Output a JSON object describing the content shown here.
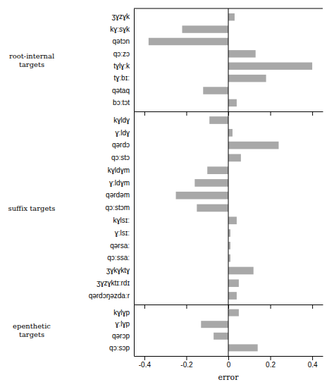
{
  "chart_data": [
    {
      "type": "bar",
      "orientation": "horizontal",
      "ylabel": "root-internal\ntargets",
      "categories": [
        "ʒɣzɣk",
        "kɣːsɣk",
        "qətɔn",
        "qɔːzɔ",
        "tɣlɣːk",
        "tɣːbɪː",
        "qətaq",
        "bɔːtɔt"
      ],
      "values": [
        0.03,
        -0.22,
        -0.38,
        0.13,
        0.4,
        0.18,
        -0.12,
        0.04
      ],
      "color": "#a8a8a8",
      "xlim": [
        -0.45,
        0.45
      ],
      "xticks": [
        -0.4,
        -0.2,
        0,
        0.2,
        0.4
      ],
      "tick_labels": "y",
      "grid": false
    },
    {
      "type": "bar",
      "orientation": "horizontal",
      "ylabel": "suffix targets",
      "categories": [
        "kɣldɣ",
        "ɣːldɣ",
        "qərdɔ",
        "qɔːstɔ",
        "kɣldɣm",
        "ɣːldɣm",
        "qərdəm",
        "qɔːstɔm",
        "kɣlsɪː",
        "ɣːlsɪː",
        "qərsaː",
        "qɔːssaː",
        "ʒɣkɣktɣ",
        "ʒɣzɣktɪːrdɪ",
        "qərdɔŋəzdaːr"
      ],
      "values": [
        -0.09,
        0.02,
        0.24,
        0.06,
        -0.1,
        -0.16,
        -0.25,
        -0.15,
        0.04,
        0.01,
        0.01,
        0.01,
        0.12,
        0.05,
        0.04
      ],
      "color": "#a8a8a8",
      "xlim": [
        -0.45,
        0.45
      ],
      "xticks": [
        -0.4,
        -0.2,
        0,
        0.2,
        0.4
      ],
      "tick_labels": "y",
      "grid": false
    },
    {
      "type": "bar",
      "orientation": "horizontal",
      "ylabel": "epenthetic\ntargets",
      "categories": [
        "kɣlɣp",
        "ɣːlɣp",
        "qərɔp",
        "qɔːsɔp"
      ],
      "values": [
        0.05,
        -0.13,
        -0.07,
        0.14
      ],
      "color": "#a8a8a8",
      "xlim": [
        -0.45,
        0.45
      ],
      "xticks": [
        -0.4,
        -0.2,
        0,
        0.2,
        0.4
      ],
      "xlabel": "error",
      "grid": false
    }
  ]
}
